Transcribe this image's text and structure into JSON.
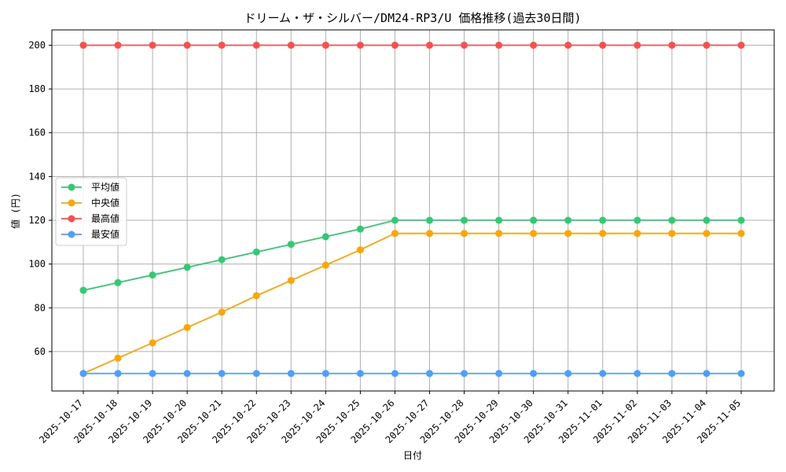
{
  "chart_data": {
    "type": "line",
    "title": "ドリーム・ザ・シルバー/DM24-RP3/U 価格推移(過去30日間)",
    "xlabel": "日付",
    "ylabel": "値 (円)",
    "x": [
      "2025-10-17",
      "2025-10-18",
      "2025-10-19",
      "2025-10-20",
      "2025-10-21",
      "2025-10-22",
      "2025-10-23",
      "2025-10-24",
      "2025-10-25",
      "2025-10-26",
      "2025-10-27",
      "2025-10-28",
      "2025-10-29",
      "2025-10-30",
      "2025-10-31",
      "2025-11-01",
      "2025-11-02",
      "2025-11-03",
      "2025-11-04",
      "2025-11-05"
    ],
    "ylim": [
      42,
      207
    ],
    "yticks": [
      60,
      80,
      100,
      120,
      140,
      160,
      180,
      200
    ],
    "grid": true,
    "legend": "center-left",
    "series": [
      {
        "name": "平均値",
        "color": "#2ecc71",
        "values": [
          88,
          91.5,
          95,
          98.5,
          102,
          105.5,
          109,
          112.5,
          116,
          120,
          120,
          120,
          120,
          120,
          120,
          120,
          120,
          120,
          120,
          120
        ]
      },
      {
        "name": "中央値",
        "color": "#ffa500",
        "values": [
          50,
          57,
          64,
          71,
          78,
          85.5,
          92.5,
          99.5,
          106.5,
          114,
          114,
          114,
          114,
          114,
          114,
          114,
          114,
          114,
          114,
          114
        ]
      },
      {
        "name": "最高値",
        "color": "#ff4d4d",
        "values": [
          200,
          200,
          200,
          200,
          200,
          200,
          200,
          200,
          200,
          200,
          200,
          200,
          200,
          200,
          200,
          200,
          200,
          200,
          200,
          200
        ]
      },
      {
        "name": "最安値",
        "color": "#4d9fff",
        "values": [
          50,
          50,
          50,
          50,
          50,
          50,
          50,
          50,
          50,
          50,
          50,
          50,
          50,
          50,
          50,
          50,
          50,
          50,
          50,
          50
        ]
      }
    ]
  }
}
